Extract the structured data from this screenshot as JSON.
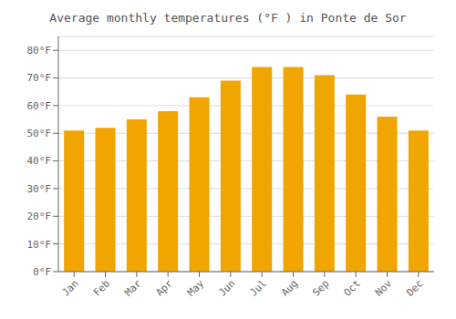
{
  "chart_data": {
    "type": "bar",
    "title": "Average monthly temperatures (°F ) in Ponte de Sor",
    "categories": [
      "Jan",
      "Feb",
      "Mar",
      "Apr",
      "May",
      "Jun",
      "Jul",
      "Aug",
      "Sep",
      "Oct",
      "Nov",
      "Dec"
    ],
    "values": [
      51,
      52,
      55,
      58,
      63,
      69,
      74,
      74,
      71,
      64,
      56,
      51
    ],
    "color": "#F0A500",
    "ylim": [
      0,
      85
    ],
    "yticks": [
      {
        "value": 0,
        "label": "0°F"
      },
      {
        "value": 10,
        "label": "10°F"
      },
      {
        "value": 20,
        "label": "20°F"
      },
      {
        "value": 30,
        "label": "30°F"
      },
      {
        "value": 40,
        "label": "40°F"
      },
      {
        "value": 50,
        "label": "50°F"
      },
      {
        "value": 60,
        "label": "60°F"
      },
      {
        "value": 70,
        "label": "70°F"
      },
      {
        "value": 80,
        "label": "80°F"
      }
    ],
    "grid": true
  }
}
